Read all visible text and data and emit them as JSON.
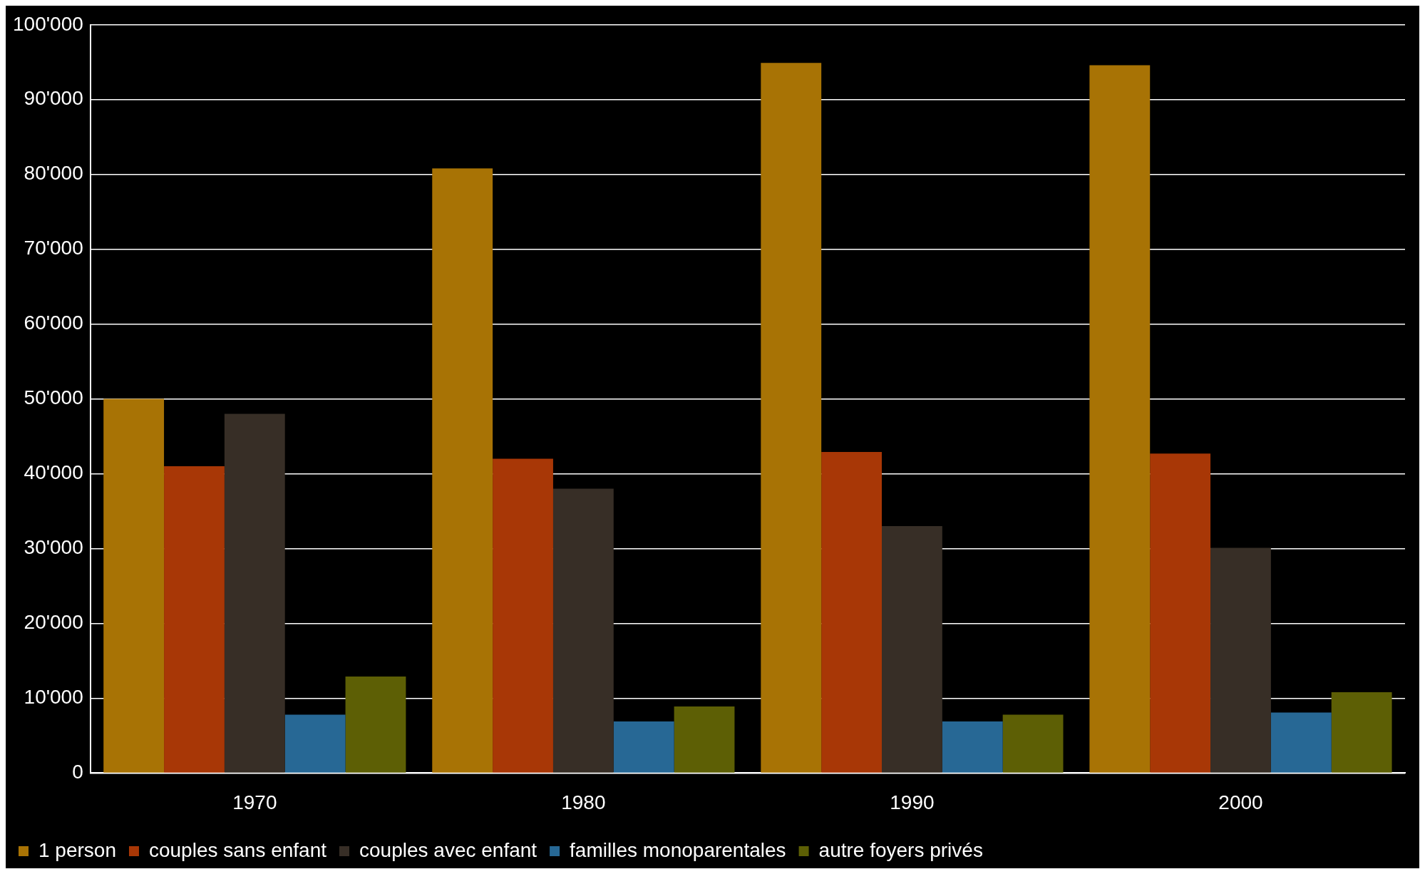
{
  "chart_data": {
    "type": "bar",
    "categories": [
      "1970",
      "1980",
      "1990",
      "2000"
    ],
    "series": [
      {
        "name": "1 person",
        "color": "#a87305",
        "values": [
          50000,
          80800,
          94900,
          94600
        ]
      },
      {
        "name": "couples sans enfant",
        "color": "#a83706",
        "values": [
          41000,
          42000,
          42900,
          42700
        ]
      },
      {
        "name": "couples avec enfant",
        "color": "#372e26",
        "values": [
          48000,
          38000,
          33000,
          30100
        ]
      },
      {
        "name": "familles monoparentales",
        "color": "#276895",
        "values": [
          7800,
          6900,
          6900,
          8100
        ]
      },
      {
        "name": "autre foyers privés",
        "color": "#5d5f05",
        "values": [
          12900,
          8900,
          7800,
          10800
        ]
      }
    ],
    "ylim": [
      0,
      100000
    ],
    "yticks": [
      0,
      {
        "value": 10000,
        "label": "10'000"
      },
      {
        "value": 20000,
        "label": "20'000"
      },
      {
        "value": 30000,
        "label": "30'000"
      },
      {
        "value": 40000,
        "label": "40'000"
      },
      {
        "value": 50000,
        "label": "50'000"
      },
      {
        "value": 60000,
        "label": "60'000"
      },
      {
        "value": 70000,
        "label": "70'000"
      },
      {
        "value": 80000,
        "label": "80'000"
      },
      {
        "value": 90000,
        "label": "90'000"
      },
      {
        "value": 100000,
        "label": "100'000"
      }
    ],
    "grid": "y",
    "legend": "bottom left"
  }
}
